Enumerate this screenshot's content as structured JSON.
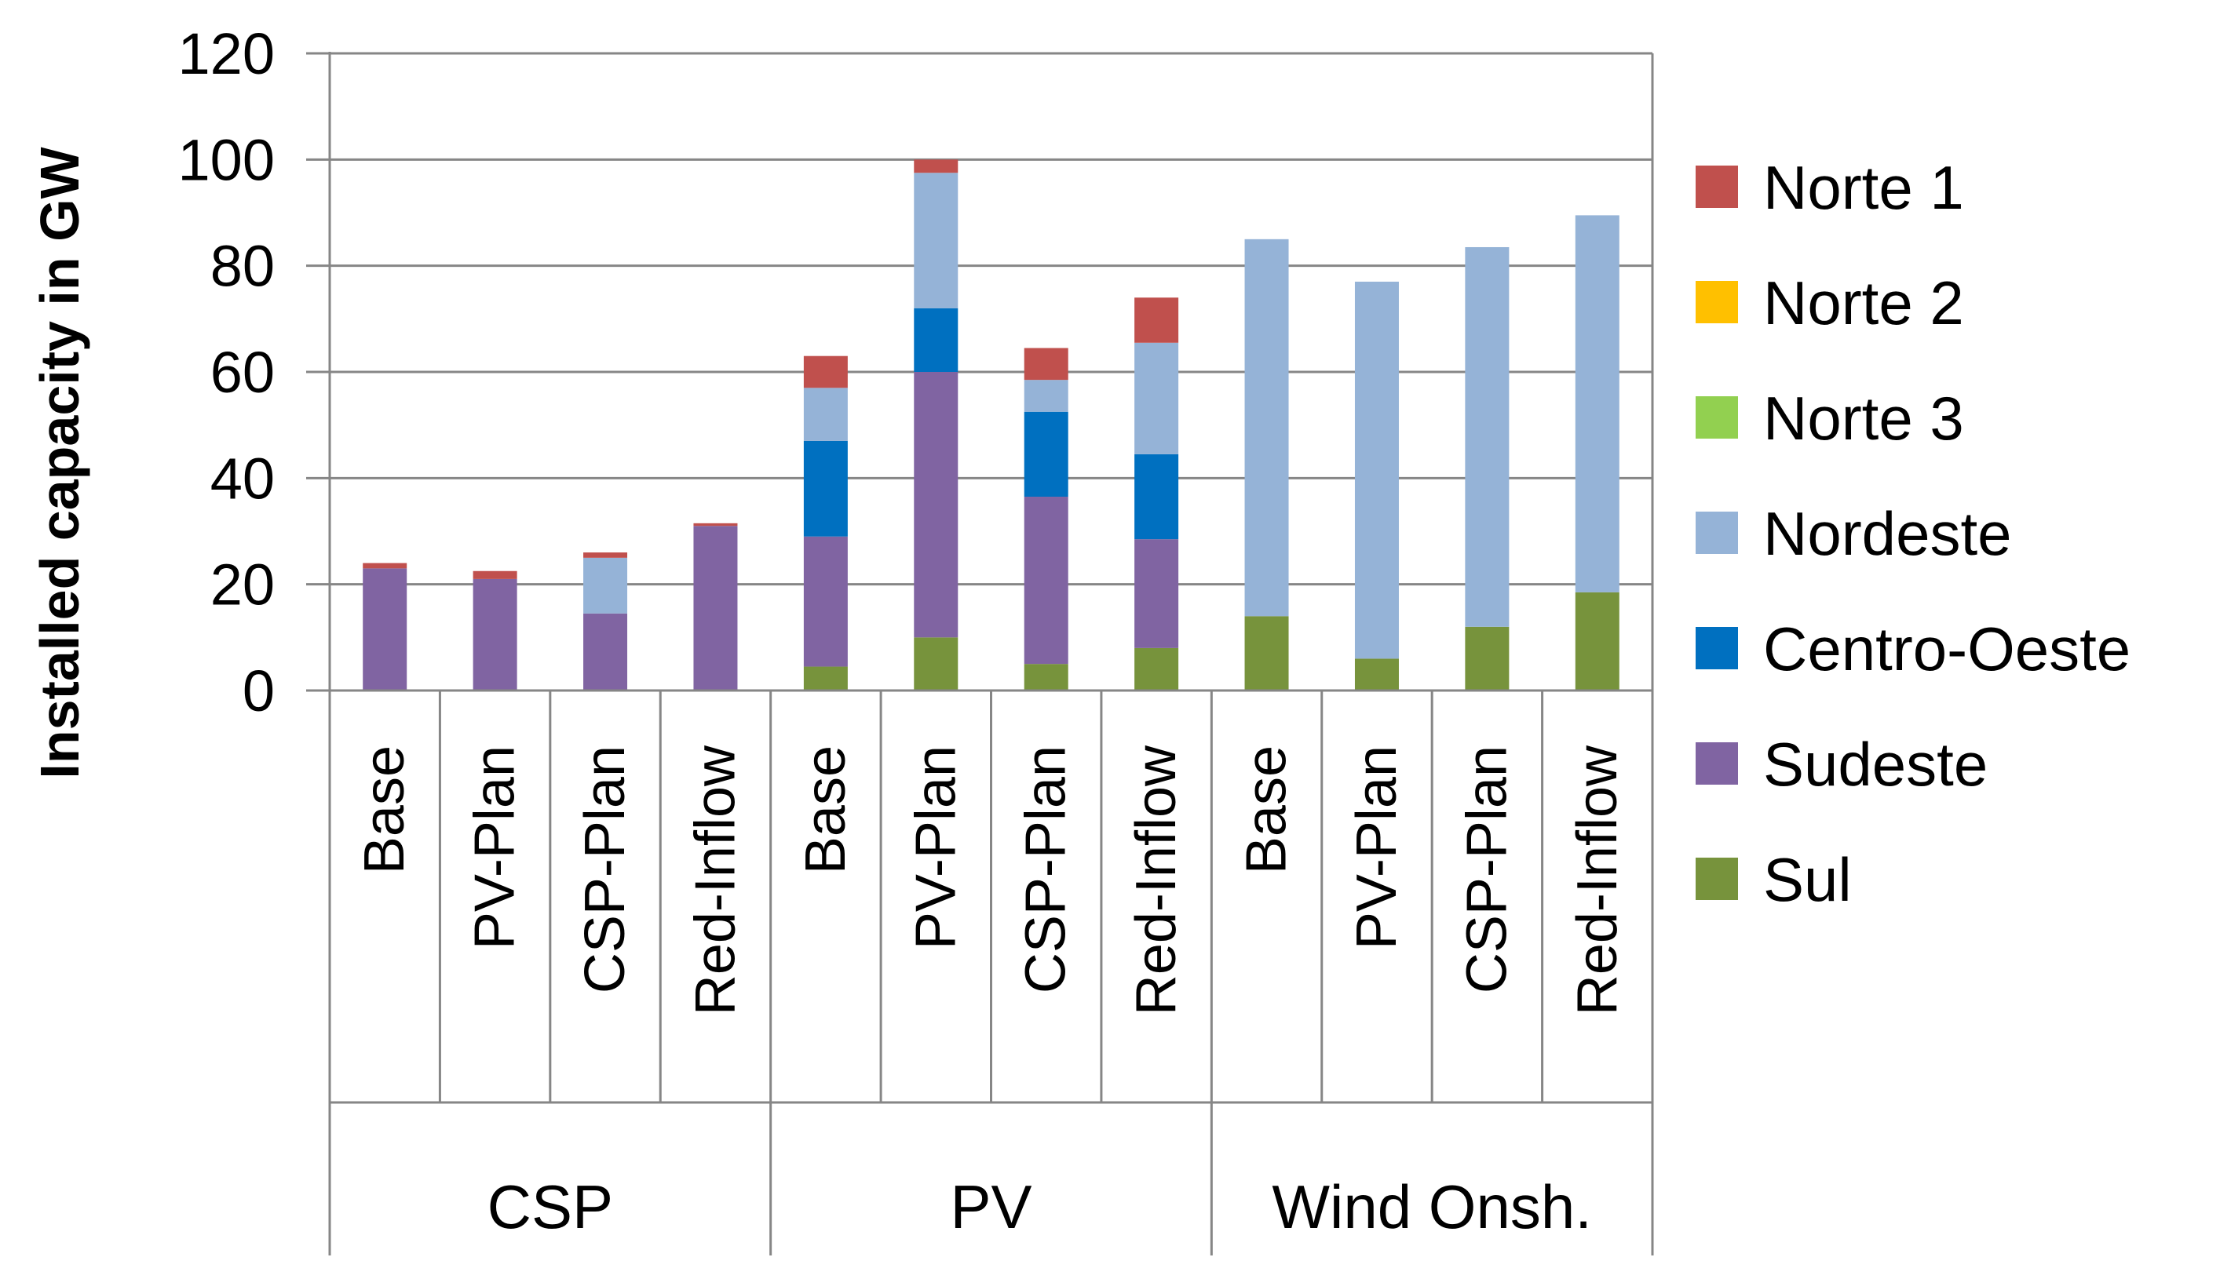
{
  "chart_data": {
    "type": "bar",
    "stacked": true,
    "ylabel": "Installed capacity in GW",
    "xlabel": "",
    "ylim": [
      0,
      120
    ],
    "yticks": [
      0,
      20,
      40,
      60,
      80,
      100,
      120
    ],
    "grid": "horizontal",
    "legend_position": "right",
    "categories": [
      "Base",
      "PV-Plan",
      "CSP-Plan",
      "Red-Inflow",
      "Base",
      "PV-Plan",
      "CSP-Plan",
      "Red-Inflow",
      "Base",
      "PV-Plan",
      "CSP-Plan",
      "Red-Inflow"
    ],
    "groups": [
      {
        "label": "CSP",
        "size": 4
      },
      {
        "label": "PV",
        "size": 4
      },
      {
        "label": "Wind Onsh.",
        "size": 4
      }
    ],
    "series": [
      {
        "name": "Sul",
        "color": "#77933C",
        "values": [
          0,
          0,
          0,
          0,
          4.5,
          10,
          5,
          8,
          14,
          6,
          12,
          18.5
        ]
      },
      {
        "name": "Sudeste",
        "color": "#8064A2",
        "values": [
          23,
          21,
          14.5,
          31,
          24.5,
          50,
          31.5,
          20.5,
          0,
          0,
          0,
          0
        ]
      },
      {
        "name": "Centro-Oeste",
        "color": "#0070C0",
        "values": [
          0,
          0,
          0,
          0,
          18,
          12,
          16,
          16,
          0,
          0,
          0,
          0
        ]
      },
      {
        "name": "Nordeste",
        "color": "#95B3D7",
        "values": [
          0,
          0,
          10.5,
          0,
          10,
          25.5,
          6,
          21,
          71,
          71,
          71.5,
          71
        ]
      },
      {
        "name": "Norte 3",
        "color": "#92D050",
        "values": [
          0,
          0,
          0,
          0,
          0,
          0,
          0,
          0,
          0,
          0,
          0,
          0
        ]
      },
      {
        "name": "Norte 2",
        "color": "#FFC000",
        "values": [
          0,
          0,
          0,
          0,
          0,
          0,
          0,
          0,
          0,
          0,
          0,
          0
        ]
      },
      {
        "name": "Norte 1",
        "color": "#C0504D",
        "values": [
          1,
          1.5,
          1,
          0.5,
          6,
          2.5,
          6,
          8.5,
          0,
          0,
          0,
          0
        ]
      }
    ],
    "legend_order": [
      "Norte 1",
      "Norte 2",
      "Norte 3",
      "Nordeste",
      "Centro-Oeste",
      "Sudeste",
      "Sul"
    ],
    "colors": {
      "grid": "#868686",
      "axis": "#868686",
      "text": "#000000"
    }
  }
}
